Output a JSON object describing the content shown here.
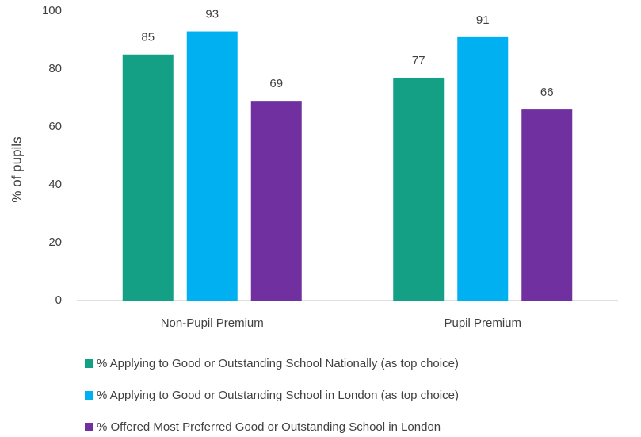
{
  "chart_data": {
    "type": "bar",
    "y_label": "% of pupils",
    "categories": [
      "Non-Pupil Premium",
      "Pupil Premium"
    ],
    "series": [
      {
        "name": "% Applying to Good or Outstanding School Nationally (as top choice)",
        "color": "#13a085",
        "values": [
          85,
          77
        ]
      },
      {
        "name": "% Applying to Good or Outstanding School in London (as top choice)",
        "color": "#00b0f0",
        "values": [
          93,
          91
        ]
      },
      {
        "name": "% Offered Most Preferred Good or Outstanding School in London",
        "color": "#7030a0",
        "values": [
          69,
          66
        ]
      }
    ],
    "ylim": [
      0,
      100
    ],
    "yticks": [
      0,
      20,
      40,
      60,
      80,
      100
    ],
    "grid": false
  }
}
